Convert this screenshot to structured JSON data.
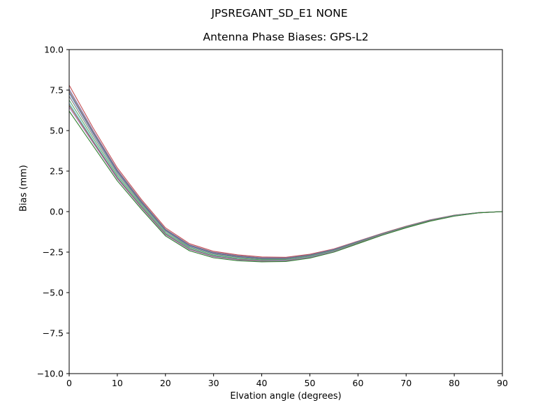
{
  "suptitle": "JPSREGANT_SD_E1 NONE",
  "title": "Antenna Phase Biases: GPS-L2",
  "chart_data": {
    "type": "line",
    "title": "Antenna Phase Biases: GPS-L2",
    "suptitle": "JPSREGANT_SD_E1 NONE",
    "xlabel": "Elvation angle (degrees)",
    "ylabel": "Bias (mm)",
    "xlim": [
      0,
      90
    ],
    "ylim": [
      -10,
      10
    ],
    "grid": false,
    "legend": "none",
    "xticks": [
      0,
      10,
      20,
      30,
      40,
      50,
      60,
      70,
      80,
      90
    ],
    "xtick_labels": [
      "0",
      "10",
      "20",
      "30",
      "40",
      "50",
      "60",
      "70",
      "80",
      "90"
    ],
    "yticks": [
      -10.0,
      -7.5,
      -5.0,
      -2.5,
      0.0,
      2.5,
      5.0,
      7.5,
      10.0
    ],
    "ytick_labels": [
      "−10.0",
      "−7.5",
      "−5.0",
      "−2.5",
      "0.0",
      "2.5",
      "5.0",
      "7.5",
      "10.0"
    ],
    "x": [
      0,
      5,
      10,
      15,
      20,
      25,
      30,
      35,
      40,
      45,
      50,
      55,
      60,
      65,
      70,
      75,
      80,
      85,
      90
    ],
    "series": [
      {
        "name": "series-1",
        "color": "#c44e52",
        "values": [
          7.8,
          5.15,
          2.7,
          0.75,
          -1.0,
          -1.98,
          -2.45,
          -2.67,
          -2.8,
          -2.82,
          -2.63,
          -2.3,
          -1.82,
          -1.34,
          -0.9,
          -0.51,
          -0.22,
          -0.06,
          0.0
        ]
      },
      {
        "name": "series-2",
        "color": "#8172b2",
        "values": [
          7.56,
          4.99,
          2.58,
          0.66,
          -1.08,
          -2.05,
          -2.51,
          -2.72,
          -2.85,
          -2.86,
          -2.67,
          -2.33,
          -1.84,
          -1.36,
          -0.92,
          -0.52,
          -0.23,
          -0.06,
          0.0
        ]
      },
      {
        "name": "series-3",
        "color": "#937860",
        "values": [
          7.44,
          4.9,
          2.52,
          0.62,
          -1.11,
          -2.08,
          -2.54,
          -2.75,
          -2.87,
          -2.88,
          -2.68,
          -2.35,
          -1.86,
          -1.37,
          -0.92,
          -0.53,
          -0.23,
          -0.06,
          0.0
        ]
      },
      {
        "name": "series-4",
        "color": "#4c72b0",
        "values": [
          7.32,
          4.82,
          2.46,
          0.57,
          -1.15,
          -2.11,
          -2.57,
          -2.78,
          -2.89,
          -2.9,
          -2.7,
          -2.36,
          -1.87,
          -1.38,
          -0.93,
          -0.53,
          -0.24,
          -0.07,
          0.0
        ]
      },
      {
        "name": "series-5",
        "color": "#7f7f7f",
        "values": [
          7.12,
          4.68,
          2.36,
          0.5,
          -1.21,
          -2.17,
          -2.62,
          -2.82,
          -2.93,
          -2.93,
          -2.73,
          -2.39,
          -1.89,
          -1.39,
          -0.94,
          -0.54,
          -0.25,
          -0.07,
          0.0
        ]
      },
      {
        "name": "series-6",
        "color": "#55a868",
        "values": [
          6.88,
          4.52,
          2.24,
          0.41,
          -1.29,
          -2.23,
          -2.68,
          -2.88,
          -2.97,
          -2.97,
          -2.77,
          -2.42,
          -1.91,
          -1.41,
          -0.96,
          -0.56,
          -0.25,
          -0.07,
          0.0
        ]
      },
      {
        "name": "series-7",
        "color": "#64b5cd",
        "values": [
          6.68,
          4.38,
          2.14,
          0.33,
          -1.35,
          -2.29,
          -2.73,
          -2.92,
          -3.01,
          -3.0,
          -2.8,
          -2.44,
          -1.93,
          -1.42,
          -0.97,
          -0.57,
          -0.26,
          -0.07,
          0.0
        ]
      },
      {
        "name": "series-8",
        "color": "#8c613c",
        "values": [
          6.56,
          4.3,
          2.08,
          0.29,
          -1.39,
          -2.32,
          -2.76,
          -2.95,
          -3.03,
          -3.02,
          -2.82,
          -2.46,
          -1.94,
          -1.43,
          -0.98,
          -0.57,
          -0.27,
          -0.08,
          0.0
        ]
      },
      {
        "name": "series-9",
        "color": "#b47cc7",
        "values": [
          6.44,
          4.22,
          2.02,
          0.24,
          -1.43,
          -2.35,
          -2.79,
          -2.98,
          -3.06,
          -3.04,
          -2.83,
          -2.47,
          -1.96,
          -1.44,
          -0.99,
          -0.58,
          -0.27,
          -0.08,
          0.0
        ]
      },
      {
        "name": "series-10",
        "color": "#2d7f2d",
        "values": [
          6.2,
          4.05,
          1.9,
          0.15,
          -1.5,
          -2.42,
          -2.85,
          -3.03,
          -3.1,
          -3.08,
          -2.87,
          -2.5,
          -1.98,
          -1.46,
          -1.0,
          -0.59,
          -0.28,
          -0.08,
          0.0
        ]
      }
    ]
  }
}
